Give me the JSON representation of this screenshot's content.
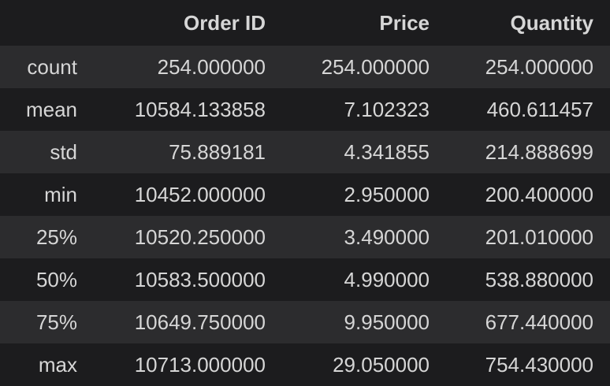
{
  "table": {
    "columns": [
      "",
      "Order ID",
      "Price",
      "Quantity"
    ],
    "rows": [
      {
        "label": "count",
        "values": [
          "254.000000",
          "254.000000",
          "254.000000"
        ]
      },
      {
        "label": "mean",
        "values": [
          "10584.133858",
          "7.102323",
          "460.611457"
        ]
      },
      {
        "label": "std",
        "values": [
          "75.889181",
          "4.341855",
          "214.888699"
        ]
      },
      {
        "label": "min",
        "values": [
          "10452.000000",
          "2.950000",
          "200.400000"
        ]
      },
      {
        "label": "25%",
        "values": [
          "10520.250000",
          "3.490000",
          "201.010000"
        ]
      },
      {
        "label": "50%",
        "values": [
          "10583.500000",
          "4.990000",
          "538.880000"
        ]
      },
      {
        "label": "75%",
        "values": [
          "10649.750000",
          "9.950000",
          "677.440000"
        ]
      },
      {
        "label": "max",
        "values": [
          "10713.000000",
          "29.050000",
          "754.430000"
        ]
      }
    ]
  }
}
